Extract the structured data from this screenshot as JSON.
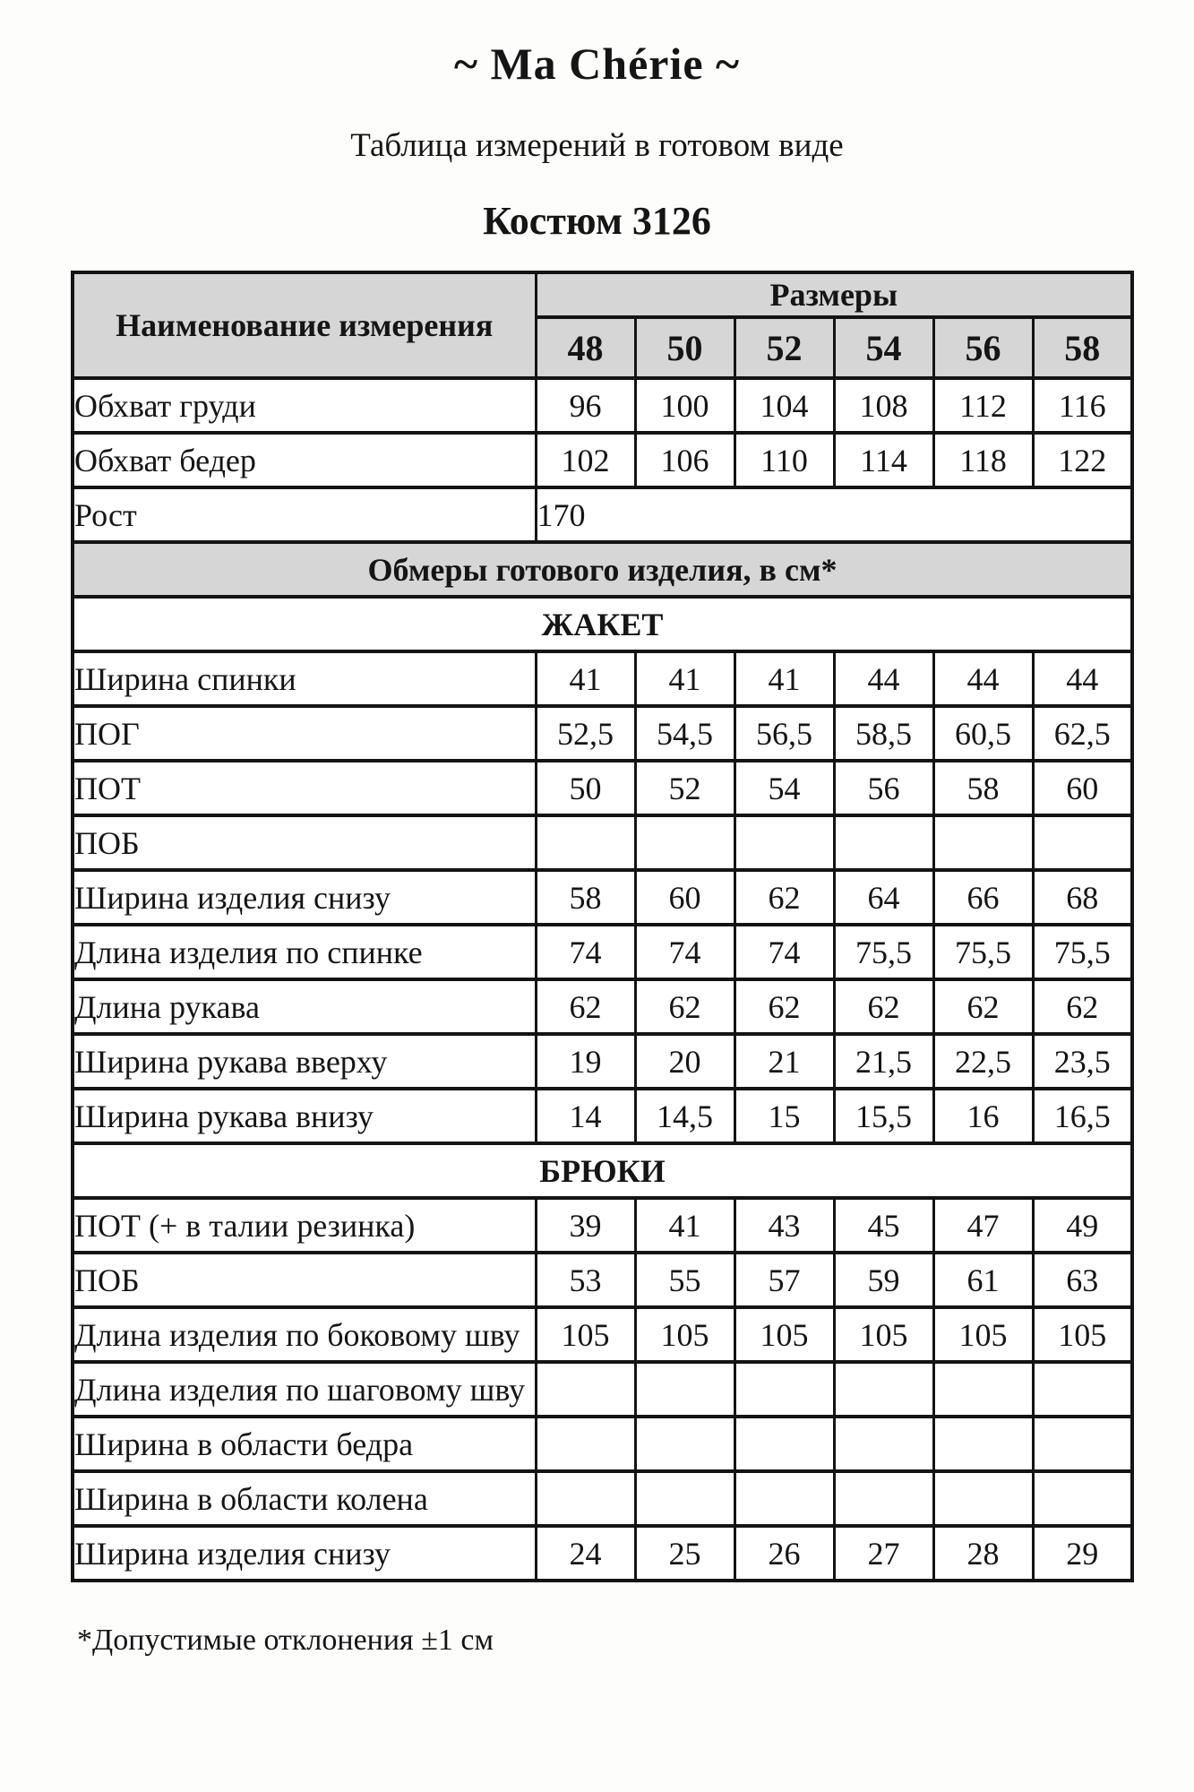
{
  "page": {
    "brand": "~ Ma Chérie ~",
    "subtitle": "Таблица измерений в готовом виде",
    "product": "Костюм 3126",
    "footnote": "*Допустимые отклонения ±1 см"
  },
  "colors": {
    "header_bg": "#d6d6d6",
    "border": "#141414",
    "text": "#151515",
    "page_bg": "#fdfdfc"
  },
  "table": {
    "name_header": "Наименование измерения",
    "sizes_header": "Размеры",
    "sizes": [
      "48",
      "50",
      "52",
      "54",
      "56",
      "58"
    ],
    "rows": [
      {
        "type": "data",
        "label": "Обхват груди",
        "values": [
          "96",
          "100",
          "104",
          "108",
          "112",
          "116"
        ]
      },
      {
        "type": "data",
        "label": "Обхват бедер",
        "values": [
          "102",
          "106",
          "110",
          "114",
          "118",
          "122"
        ]
      },
      {
        "type": "merged",
        "label": "Рост",
        "value": "170"
      },
      {
        "type": "section-gray",
        "label": "Обмеры готового изделия, в см*"
      },
      {
        "type": "section",
        "label": "ЖАКЕТ"
      },
      {
        "type": "data",
        "label": "Ширина спинки",
        "values": [
          "41",
          "41",
          "41",
          "44",
          "44",
          "44"
        ]
      },
      {
        "type": "data",
        "label": "ПОГ",
        "values": [
          "52,5",
          "54,5",
          "56,5",
          "58,5",
          "60,5",
          "62,5"
        ]
      },
      {
        "type": "data",
        "label": "ПОТ",
        "values": [
          "50",
          "52",
          "54",
          "56",
          "58",
          "60"
        ]
      },
      {
        "type": "data",
        "label": "ПОБ",
        "values": [
          "",
          "",
          "",
          "",
          "",
          ""
        ]
      },
      {
        "type": "data",
        "label": "Ширина изделия снизу",
        "values": [
          "58",
          "60",
          "62",
          "64",
          "66",
          "68"
        ]
      },
      {
        "type": "data",
        "label": "Длина изделия по спинке",
        "values": [
          "74",
          "74",
          "74",
          "75,5",
          "75,5",
          "75,5"
        ]
      },
      {
        "type": "data",
        "label": "Длина рукава",
        "values": [
          "62",
          "62",
          "62",
          "62",
          "62",
          "62"
        ]
      },
      {
        "type": "data",
        "label": "Ширина рукава вверху",
        "values": [
          "19",
          "20",
          "21",
          "21,5",
          "22,5",
          "23,5"
        ]
      },
      {
        "type": "data",
        "label": "Ширина рукава внизу",
        "values": [
          "14",
          "14,5",
          "15",
          "15,5",
          "16",
          "16,5"
        ]
      },
      {
        "type": "section",
        "label": "БРЮКИ"
      },
      {
        "type": "data",
        "label": "ПОТ (+ в талии резинка)",
        "values": [
          "39",
          "41",
          "43",
          "45",
          "47",
          "49"
        ]
      },
      {
        "type": "data",
        "label": "ПОБ",
        "values": [
          "53",
          "55",
          "57",
          "59",
          "61",
          "63"
        ]
      },
      {
        "type": "data",
        "label": "Длина изделия по боковому шву",
        "values": [
          "105",
          "105",
          "105",
          "105",
          "105",
          "105"
        ]
      },
      {
        "type": "data",
        "label": "Длина изделия по шаговому шву",
        "values": [
          "",
          "",
          "",
          "",
          "",
          ""
        ]
      },
      {
        "type": "data",
        "label": "Ширина в области бедра",
        "values": [
          "",
          "",
          "",
          "",
          "",
          ""
        ]
      },
      {
        "type": "data",
        "label": "Ширина в области колена",
        "values": [
          "",
          "",
          "",
          "",
          "",
          ""
        ]
      },
      {
        "type": "data",
        "label": "Ширина изделия снизу",
        "values": [
          "24",
          "25",
          "26",
          "27",
          "28",
          "29"
        ]
      }
    ]
  }
}
